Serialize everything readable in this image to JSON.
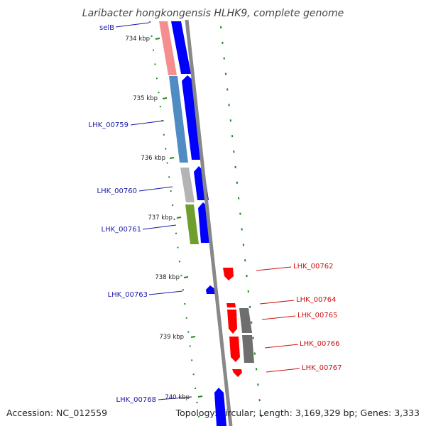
{
  "title": "Laribacter hongkongensis HLHK9, complete genome",
  "accession": "Accession: NC_012559",
  "topology": "Topology: circular; Length: 3,169,329 bp; Genes: 3,333",
  "colors": {
    "forward_gene": "#0000ff",
    "reverse_gene": "#ff0000",
    "backbone": "#888888",
    "tick": "#1d8a1d",
    "forward_label": "#1a1aaa",
    "reverse_label": "#cc1111",
    "gc_gray": "#6e6e6e"
  },
  "ticks": [
    {
      "label": "734 kbp"
    },
    {
      "label": "735 kbp"
    },
    {
      "label": "736 kbp"
    },
    {
      "label": "737 kbp"
    },
    {
      "label": "738 kbp"
    },
    {
      "label": "739 kbp"
    },
    {
      "label": "740 kbp"
    }
  ],
  "forward_genes": [
    {
      "label": "selB"
    },
    {
      "label": "LHK_00759"
    },
    {
      "label": "LHK_00760"
    },
    {
      "label": "LHK_00761"
    },
    {
      "label": "LHK_00763"
    },
    {
      "label": "LHK_00768"
    }
  ],
  "reverse_genes": [
    {
      "label": "LHK_00762"
    },
    {
      "label": "LHK_00764"
    },
    {
      "label": "LHK_00765"
    },
    {
      "label": "LHK_00766"
    },
    {
      "label": "LHK_00767"
    }
  ]
}
